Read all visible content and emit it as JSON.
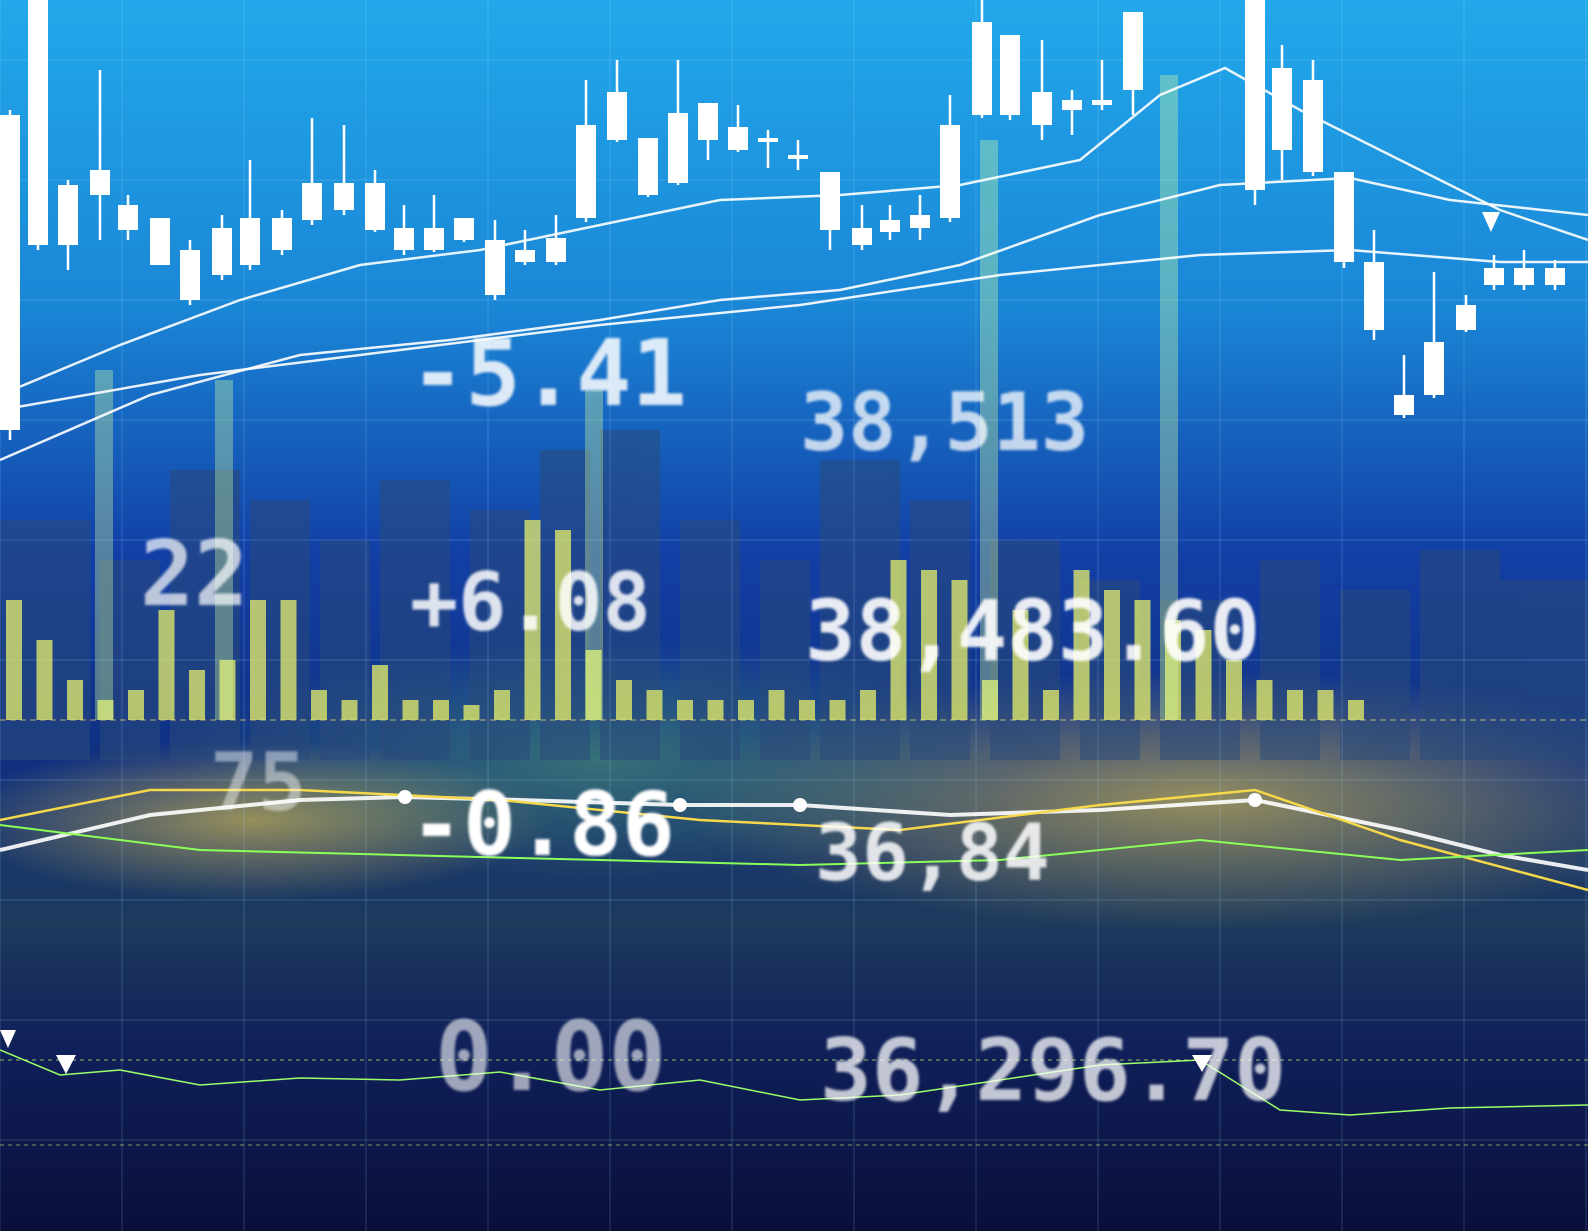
{
  "overlay_texts": [
    "-5.41",
    "38,513",
    "22",
    "+6.08",
    "38,483.60",
    "-0.86",
    "36,84",
    "75",
    "0.00",
    "36,296.70"
  ]
}
